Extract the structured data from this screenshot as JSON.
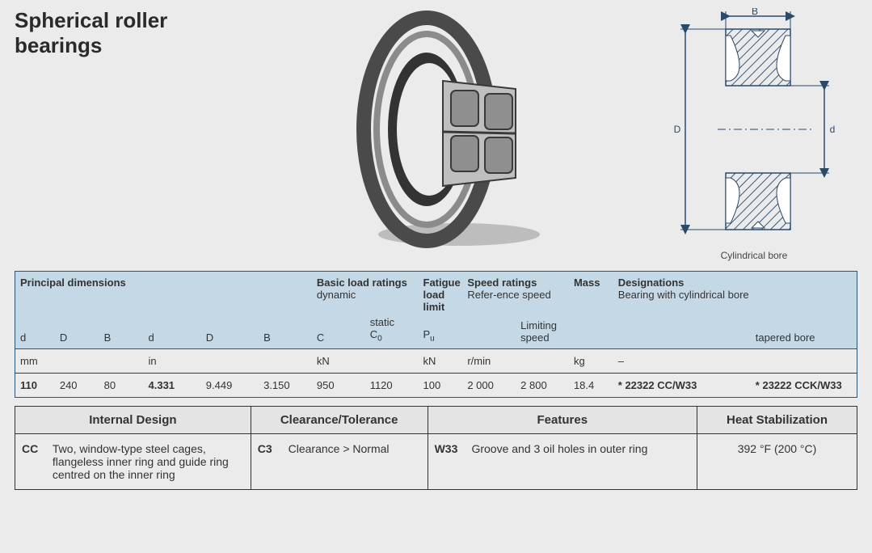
{
  "title": "Spherical roller bearings",
  "diagram_caption": "Cylindrical bore",
  "dim_labels": {
    "B": "B",
    "D": "D",
    "d": "d"
  },
  "spec_table": {
    "groups": {
      "principal": "Principal dimensions",
      "basic_load": "Basic load ratings",
      "basic_load_sub1": "dynamic",
      "basic_load_sub2": "static",
      "fatigue": "Fatigue load limit",
      "speed": "Speed ratings",
      "speed_sub1": "Refer-ence speed",
      "speed_sub2": "Limiting speed",
      "mass": "Mass",
      "designations": "Designations",
      "designations_sub1": "Bearing with cylindrical bore",
      "designations_sub2": "tapered bore"
    },
    "symbols": {
      "d": "d",
      "D": "D",
      "B": "B",
      "C": "C",
      "C0_html": "C<sub>0</sub>",
      "Pu_html": "P<sub>u</sub>"
    },
    "units": {
      "mm": "mm",
      "in": "in",
      "kN": "kN",
      "rmin": "r/min",
      "kg": "kg",
      "dash": "–"
    },
    "row": {
      "d_mm": "110",
      "D_mm": "240",
      "B_mm": "80",
      "d_in": "4.331",
      "D_in": "9.449",
      "B_in": "3.150",
      "C": "950",
      "C0": "1120",
      "Pu": "100",
      "ref_speed": "2 000",
      "lim_speed": "2 800",
      "mass": "18.4",
      "des_cyl": "* 22322 CC/W33",
      "des_tap": "* 23222 CCK/W33"
    }
  },
  "detail_table": {
    "headers": {
      "internal": "Internal Design",
      "clearance": "Clearance/Tolerance",
      "features": "Features",
      "heat": "Heat Stabilization"
    },
    "internal": {
      "code": "CC",
      "text": "Two, window-type steel cages, flangeless inner ring and guide ring centred on the inner ring"
    },
    "clearance": {
      "code": "C3",
      "text": "Clearance > Normal"
    },
    "features": {
      "code": "W33",
      "text": "Groove and 3 oil holes in outer ring"
    },
    "heat": "392 °F (200 °C)"
  },
  "colors": {
    "page_bg": "#ebebeb",
    "table_header_bg": "#c4d9e5",
    "table_border": "#2b5577",
    "detail_header_bg": "#e4e4e4",
    "line": "#333333"
  }
}
